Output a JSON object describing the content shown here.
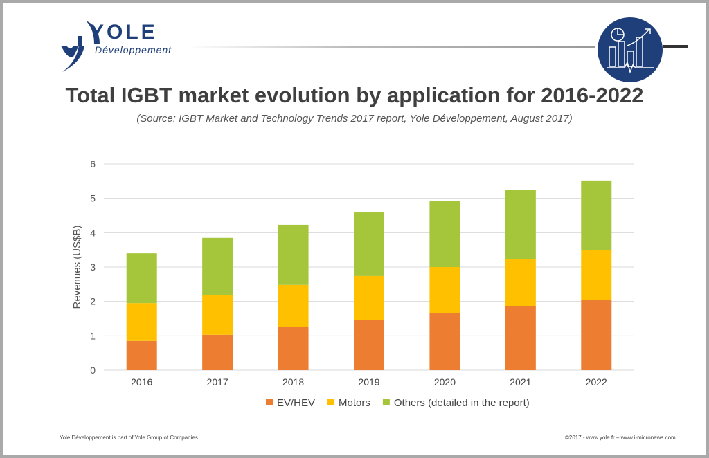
{
  "brand": {
    "name": "YOLE",
    "sub": "Développement",
    "accent": "#1f3f7a"
  },
  "header": {
    "title": "Total IGBT market evolution by application for 2016-2022",
    "subtitle": "(Source: IGBT Market and Technology Trends 2017 report, Yole Développement, August 2017)"
  },
  "footer": {
    "left": "Yole Développement is part of Yole Group of Companies",
    "right": "©2017 - www.yole.fr – www.i-micronews.com"
  },
  "chart_data": {
    "type": "bar",
    "stacked": true,
    "title": "Total IGBT market evolution by application for 2016-2022",
    "xlabel": "",
    "ylabel": "Revenues (US$B)",
    "ylim": [
      0,
      6
    ],
    "yticks": [
      "0",
      "1",
      "2",
      "3",
      "4",
      "5",
      "6"
    ],
    "grid": true,
    "legend": "bottom",
    "categories": [
      "2016",
      "2017",
      "2018",
      "2019",
      "2020",
      "2021",
      "2022"
    ],
    "series": [
      {
        "name": "EV/HEV",
        "color": "#ed7d31",
        "values": [
          0.85,
          1.03,
          1.25,
          1.47,
          1.67,
          1.87,
          2.05
        ]
      },
      {
        "name": "Motors",
        "color": "#ffc000",
        "values": [
          1.1,
          1.16,
          1.23,
          1.27,
          1.33,
          1.37,
          1.45
        ]
      },
      {
        "name": "Others (detailed in the report)",
        "color": "#a5c63b",
        "values": [
          1.45,
          1.66,
          1.75,
          1.85,
          1.93,
          2.01,
          2.02
        ]
      }
    ]
  }
}
